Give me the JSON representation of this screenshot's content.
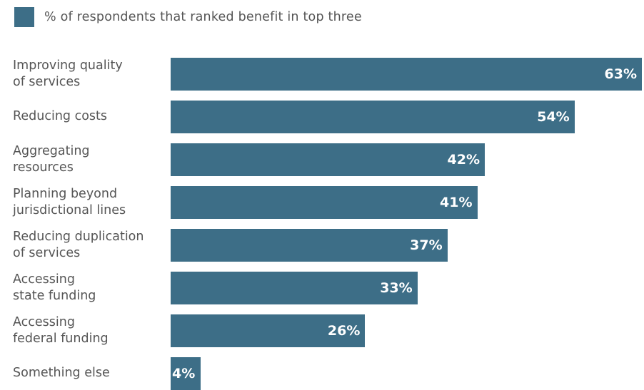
{
  "legend": {
    "label": "% of respondents that ranked benefit in top three",
    "color": "#3d6e87"
  },
  "chart_data": {
    "type": "bar",
    "orientation": "horizontal",
    "categories": [
      "Improving quality\nof services",
      "Reducing costs",
      "Aggregating\nresources",
      "Planning beyond\njurisdictional lines",
      "Reducing duplication\nof services",
      "Accessing\nstate funding",
      "Accessing\nfederal funding",
      "Something else"
    ],
    "series": [
      {
        "name": "% of respondents that ranked benefit in top three",
        "values": [
          63,
          54,
          42,
          41,
          37,
          33,
          26,
          4
        ],
        "labels": [
          "63%",
          "54%",
          "42%",
          "41%",
          "37%",
          "33%",
          "26%",
          "4%"
        ]
      }
    ],
    "xlim": [
      0,
      63
    ],
    "grid": false,
    "legend_position": "top-left",
    "bar_color": "#3d6e87"
  }
}
